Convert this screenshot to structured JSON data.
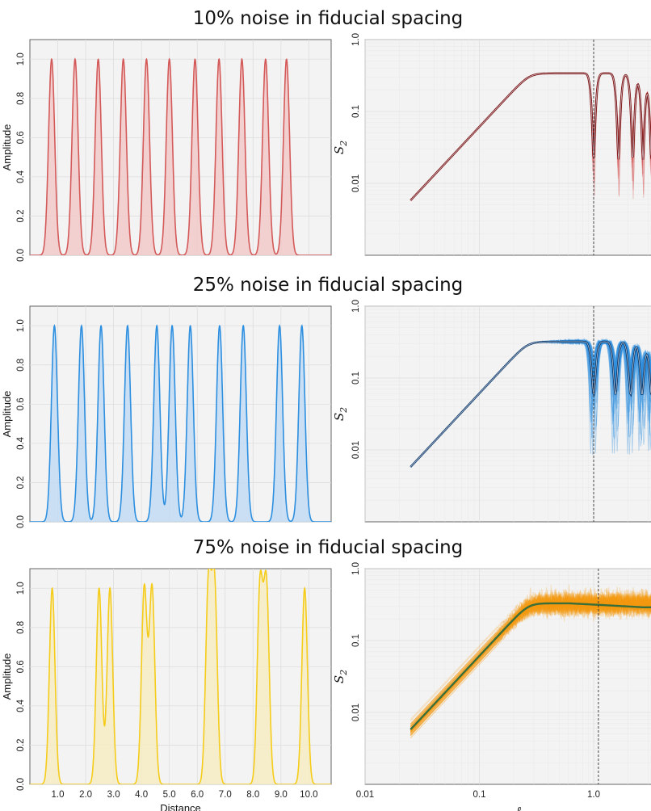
{
  "colors": {
    "red": "#d45a5a",
    "red_dark": "#7a0d0d",
    "red_fill": "#f3c7c7",
    "blue": "#2d8fe0",
    "blue_dark": "#0b3566",
    "blue_fill": "#bfd9f3",
    "yellow": "#f5cc1a",
    "yellow_fill": "#f6ecc0",
    "orange": "#f59b10",
    "green_line": "#3b6e3a"
  },
  "chart_data": [
    {
      "type": "line",
      "panel": "row1-left",
      "title": "10% noise in fiducial spacing",
      "xlabel": "",
      "ylabel": "Amplitude",
      "xlim": [
        0,
        10.8
      ],
      "ylim": [
        0,
        1.1
      ],
      "yticks": [
        "0.0",
        "0.2",
        "0.4",
        "0.6",
        "0.8",
        "1.0"
      ],
      "xticks": [],
      "series": [
        {
          "peaks": [
            0.78,
            1.62,
            2.45,
            3.35,
            4.18,
            5.0,
            5.92,
            6.78,
            7.6,
            8.45,
            9.2
          ],
          "values": [
            1,
            1,
            1,
            1,
            1,
            1,
            1,
            1,
            1,
            1,
            1
          ],
          "width": 0.11
        }
      ]
    },
    {
      "type": "line",
      "panel": "row1-right",
      "xlabel": "",
      "ylabel": "S2",
      "xscale": "log",
      "yscale": "log",
      "xlim": [
        0.01,
        3.5
      ],
      "ylim": [
        0.001,
        1.0
      ],
      "yticks": [
        "1.0",
        "0.1",
        "0.01"
      ],
      "xticks": [],
      "vline": 1.0,
      "curve": {
        "peak": 0.34,
        "knee": 0.42,
        "start_x": 0.025,
        "start_y": 0.0058,
        "dips_x": [
          1.0,
          1.65,
          2.2,
          2.7,
          3.2
        ],
        "dip_depth": 0.055,
        "spread": "narrow"
      }
    },
    {
      "type": "line",
      "panel": "row2-left",
      "title": "25% noise in fiducial spacing",
      "xlabel": "",
      "ylabel": "Amplitude",
      "xlim": [
        0,
        10.8
      ],
      "ylim": [
        0,
        1.1
      ],
      "yticks": [
        "0.0",
        "0.2",
        "0.4",
        "0.6",
        "0.8",
        "1.0"
      ],
      "xticks": [],
      "series": [
        {
          "peaks": [
            0.88,
            1.85,
            2.55,
            3.5,
            4.55,
            5.1,
            5.75,
            6.8,
            7.65,
            8.95,
            9.75
          ],
          "values": [
            1,
            1,
            1,
            1,
            1,
            1,
            1,
            1,
            1,
            1,
            1
          ],
          "width": 0.11
        }
      ]
    },
    {
      "type": "line",
      "panel": "row2-right",
      "xlabel": "",
      "ylabel": "S2",
      "xscale": "log",
      "yscale": "log",
      "xlim": [
        0.01,
        3.5
      ],
      "ylim": [
        0.001,
        1.0
      ],
      "yticks": [
        "1.0",
        "0.1",
        "0.01"
      ],
      "xticks": [],
      "vline": 1.0,
      "curve": {
        "peak": 0.32,
        "knee": 0.42,
        "start_x": 0.025,
        "start_y": 0.0058,
        "dips_x": [
          1.0,
          1.55,
          2.1,
          2.65,
          3.2
        ],
        "dip_depth": 0.16,
        "spread": "medium"
      }
    },
    {
      "type": "line",
      "panel": "row3-left",
      "title": "75% noise in fiducial spacing",
      "xlabel": "Distance",
      "ylabel": "Amplitude",
      "xlim": [
        0,
        10.8
      ],
      "ylim": [
        0,
        1.1
      ],
      "yticks": [
        "0.0",
        "0.2",
        "0.4",
        "0.6",
        "0.8",
        "1.0"
      ],
      "xticks": [
        "1.0",
        "2.0",
        "3.0",
        "4.0",
        "5.0",
        "6.0",
        "7.0",
        "8.0",
        "9.0",
        "10.0"
      ],
      "series": [
        {
          "peaks": [
            0.8,
            2.48,
            2.87,
            4.1,
            4.38,
            6.4,
            6.62,
            8.25,
            8.48,
            9.85
          ],
          "values": [
            1,
            1,
            1,
            1,
            1,
            1,
            1,
            1,
            1,
            1
          ],
          "width": 0.1
        }
      ]
    },
    {
      "type": "line",
      "panel": "row3-right",
      "xlabel": "ℓ",
      "ylabel": "S2",
      "xscale": "log",
      "yscale": "log",
      "xlim": [
        0.01,
        3.5
      ],
      "ylim": [
        0.001,
        1.0
      ],
      "yticks": [
        "1.0",
        "0.1",
        "0.01"
      ],
      "xticks": [
        "0.01",
        "0.1",
        "1.0"
      ],
      "vline": 1.1,
      "curve": {
        "peak": 0.33,
        "knee": 0.4,
        "start_x": 0.025,
        "start_y": 0.0058,
        "dips_x": [],
        "dip_depth": 0.9,
        "spread": "wide"
      }
    }
  ]
}
